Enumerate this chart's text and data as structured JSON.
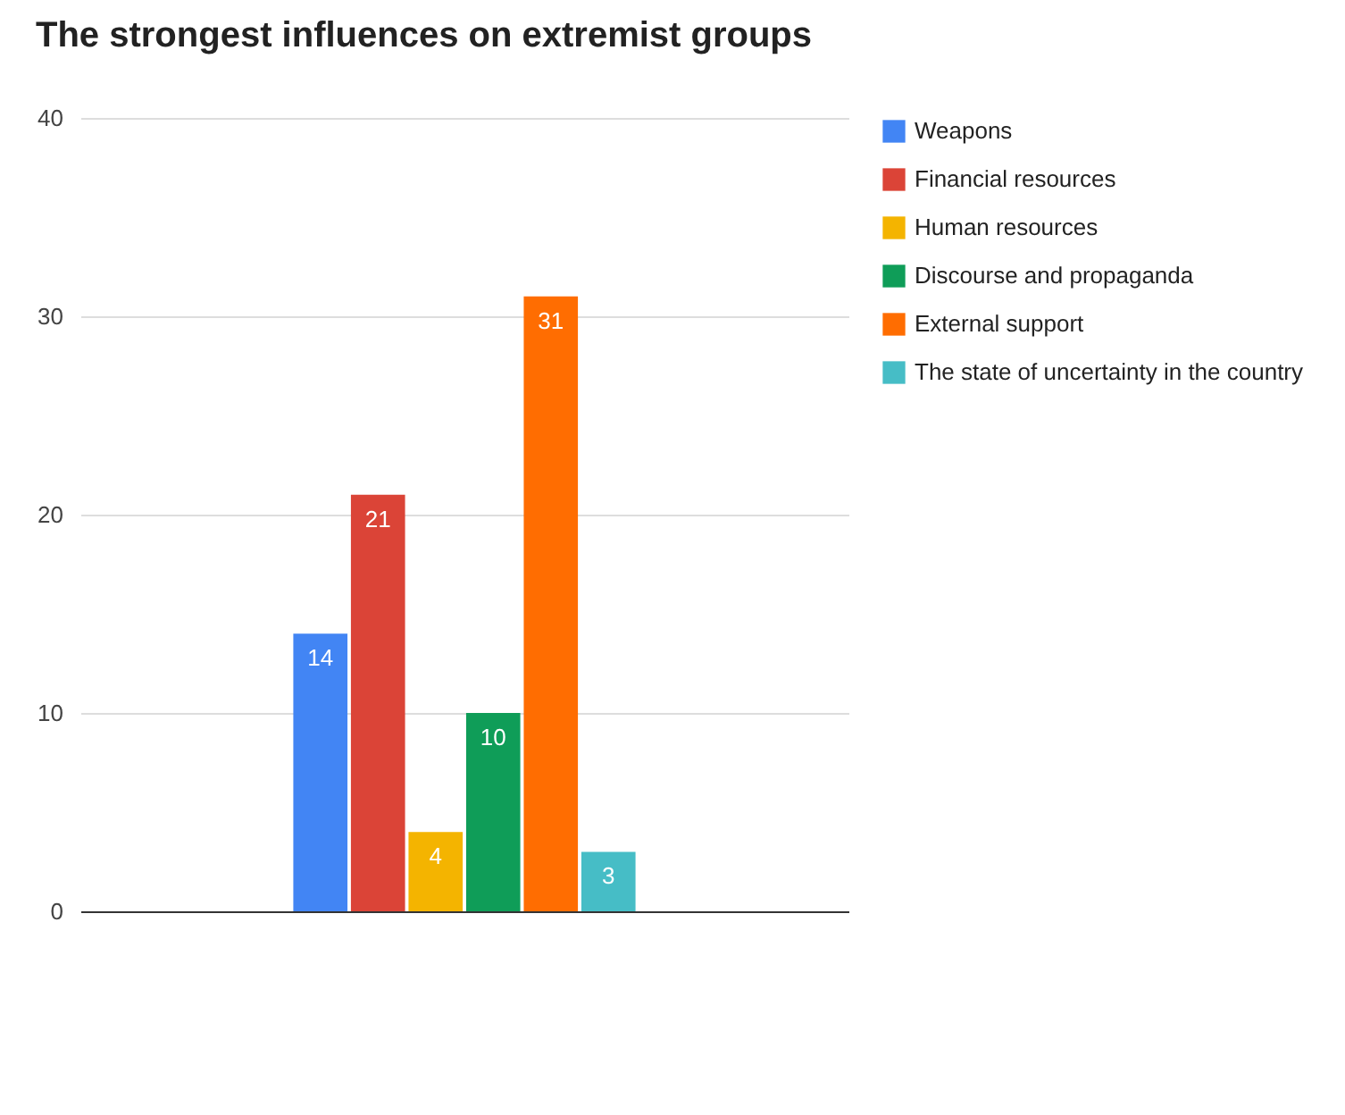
{
  "chart_data": {
    "type": "bar",
    "title": "The strongest influences on extremist groups",
    "categories": [
      null
    ],
    "series": [
      {
        "name": "Weapons",
        "color": "#4285f4",
        "values": [
          14
        ]
      },
      {
        "name": "Financial resources",
        "color": "#db4437",
        "values": [
          21
        ]
      },
      {
        "name": "Human resources",
        "color": "#f4b400",
        "values": [
          4
        ]
      },
      {
        "name": "Discourse and propaganda",
        "color": "#0f9d58",
        "values": [
          10
        ]
      },
      {
        "name": "External support",
        "color": "#ff6d01",
        "values": [
          31
        ]
      },
      {
        "name": "The state of uncertainty in the country",
        "color": "#46bdc6",
        "values": [
          3
        ]
      }
    ],
    "ylim": [
      0,
      40
    ],
    "yticks": [
      0,
      10,
      20,
      30,
      40
    ],
    "grid": "y",
    "legend": "right",
    "data_labels": true,
    "tick_labels": "y"
  }
}
